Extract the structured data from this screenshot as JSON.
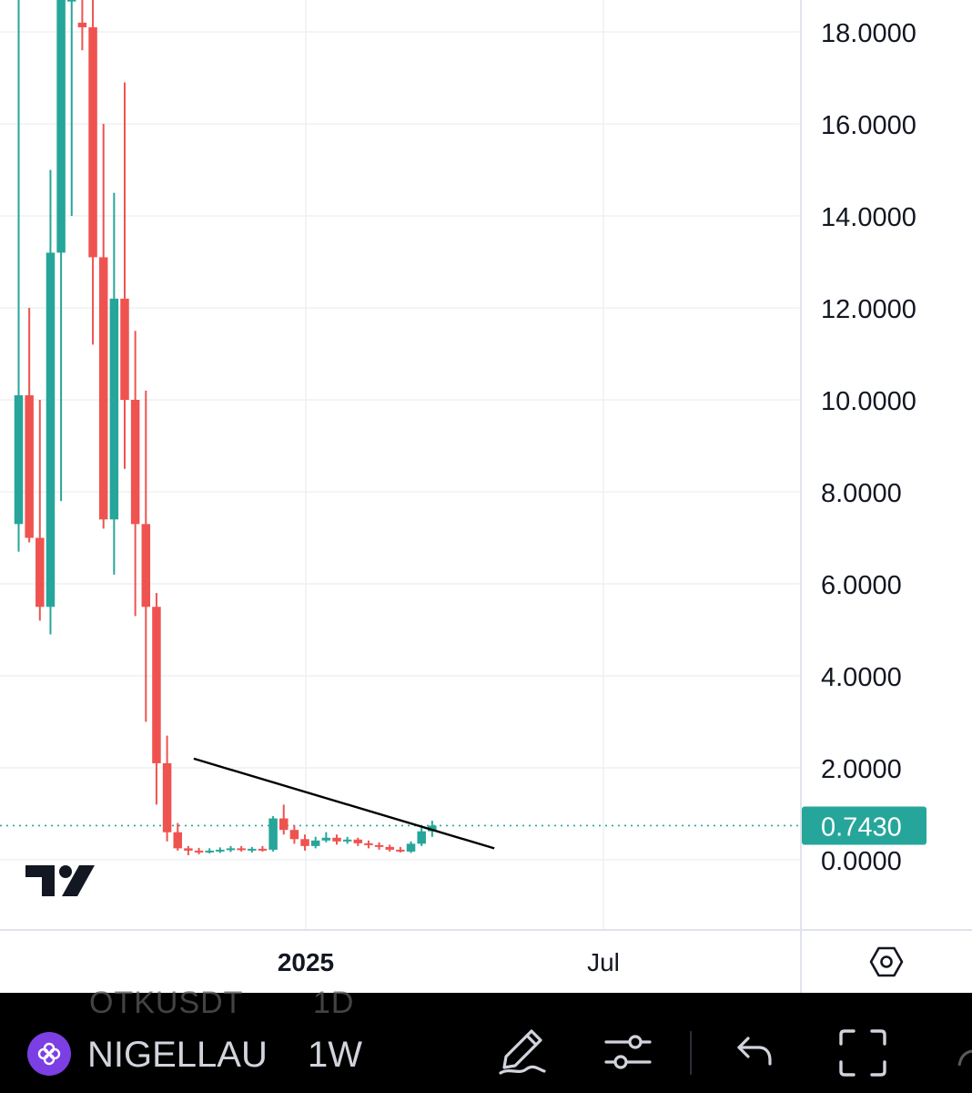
{
  "chart_data": {
    "type": "candlestick",
    "interval": "1W",
    "y_ticks": [
      "18.0000",
      "16.0000",
      "14.0000",
      "12.0000",
      "10.0000",
      "8.0000",
      "6.0000",
      "4.0000",
      "2.0000",
      "0.0000"
    ],
    "x_ticks": [
      {
        "label": "2025",
        "bold": true
      },
      {
        "label": "Jul",
        "bold": false
      }
    ],
    "ylim": [
      -1.5,
      18.7
    ],
    "last_price": "0.7430",
    "last_price_value": 0.743,
    "colors": {
      "up": "#26a69a",
      "down": "#ef5350",
      "last_price": "#26a69a",
      "trendline": "#000000",
      "grid": "#eef0f3"
    },
    "candles": [
      {
        "o": 7.3,
        "h": 18.7,
        "l": 6.7,
        "c": 10.1
      },
      {
        "o": 10.1,
        "h": 12.0,
        "l": 6.9,
        "c": 7.0
      },
      {
        "o": 7.0,
        "h": 10.0,
        "l": 5.2,
        "c": 5.5
      },
      {
        "o": 5.5,
        "h": 15.0,
        "l": 4.9,
        "c": 13.2
      },
      {
        "o": 13.2,
        "h": 18.7,
        "l": 7.8,
        "c": 18.7
      },
      {
        "o": 18.7,
        "h": 18.7,
        "l": 14.0,
        "c": 18.7
      },
      {
        "o": 18.2,
        "h": 18.7,
        "l": 17.6,
        "c": 18.1
      },
      {
        "o": 18.1,
        "h": 18.7,
        "l": 11.2,
        "c": 13.1
      },
      {
        "o": 13.1,
        "h": 16.0,
        "l": 7.2,
        "c": 7.4
      },
      {
        "o": 7.4,
        "h": 14.5,
        "l": 6.2,
        "c": 12.2
      },
      {
        "o": 12.2,
        "h": 16.9,
        "l": 8.5,
        "c": 10.0
      },
      {
        "o": 10.0,
        "h": 11.5,
        "l": 5.3,
        "c": 7.3
      },
      {
        "o": 7.3,
        "h": 10.2,
        "l": 3.0,
        "c": 5.5
      },
      {
        "o": 5.5,
        "h": 5.8,
        "l": 1.2,
        "c": 2.1
      },
      {
        "o": 2.1,
        "h": 2.7,
        "l": 0.4,
        "c": 0.6
      },
      {
        "o": 0.6,
        "h": 0.8,
        "l": 0.2,
        "c": 0.25
      },
      {
        "o": 0.25,
        "h": 0.3,
        "l": 0.1,
        "c": 0.2
      },
      {
        "o": 0.2,
        "h": 0.26,
        "l": 0.12,
        "c": 0.18
      },
      {
        "o": 0.18,
        "h": 0.25,
        "l": 0.14,
        "c": 0.2
      },
      {
        "o": 0.2,
        "h": 0.27,
        "l": 0.15,
        "c": 0.22
      },
      {
        "o": 0.22,
        "h": 0.3,
        "l": 0.17,
        "c": 0.25
      },
      {
        "o": 0.25,
        "h": 0.3,
        "l": 0.18,
        "c": 0.22
      },
      {
        "o": 0.22,
        "h": 0.28,
        "l": 0.16,
        "c": 0.24
      },
      {
        "o": 0.24,
        "h": 0.3,
        "l": 0.18,
        "c": 0.22
      },
      {
        "o": 0.22,
        "h": 0.95,
        "l": 0.18,
        "c": 0.9
      },
      {
        "o": 0.9,
        "h": 1.2,
        "l": 0.55,
        "c": 0.65
      },
      {
        "o": 0.65,
        "h": 0.75,
        "l": 0.35,
        "c": 0.45
      },
      {
        "o": 0.45,
        "h": 0.55,
        "l": 0.2,
        "c": 0.3
      },
      {
        "o": 0.3,
        "h": 0.5,
        "l": 0.25,
        "c": 0.42
      },
      {
        "o": 0.42,
        "h": 0.6,
        "l": 0.38,
        "c": 0.48
      },
      {
        "o": 0.48,
        "h": 0.55,
        "l": 0.33,
        "c": 0.4
      },
      {
        "o": 0.4,
        "h": 0.5,
        "l": 0.35,
        "c": 0.44
      },
      {
        "o": 0.44,
        "h": 0.48,
        "l": 0.3,
        "c": 0.36
      },
      {
        "o": 0.36,
        "h": 0.42,
        "l": 0.25,
        "c": 0.32
      },
      {
        "o": 0.32,
        "h": 0.38,
        "l": 0.22,
        "c": 0.28
      },
      {
        "o": 0.28,
        "h": 0.33,
        "l": 0.18,
        "c": 0.22
      },
      {
        "o": 0.22,
        "h": 0.28,
        "l": 0.16,
        "c": 0.18
      },
      {
        "o": 0.18,
        "h": 0.4,
        "l": 0.15,
        "c": 0.35
      },
      {
        "o": 0.35,
        "h": 0.7,
        "l": 0.3,
        "c": 0.62
      },
      {
        "o": 0.62,
        "h": 0.85,
        "l": 0.5,
        "c": 0.743
      }
    ],
    "trendline": {
      "start": {
        "candle": 16,
        "price": 2.2
      },
      "end": {
        "candle": 44,
        "price": 0.25
      }
    }
  },
  "toolbar": {
    "ghost_symbol": "OTKUSDT",
    "ghost_interval": "1D",
    "symbol": "NIGELLAU",
    "interval": "1W",
    "icons": [
      "symbol-icon",
      "pen-icon",
      "settings-sliders-icon",
      "undo-icon",
      "fullscreen-icon"
    ]
  }
}
